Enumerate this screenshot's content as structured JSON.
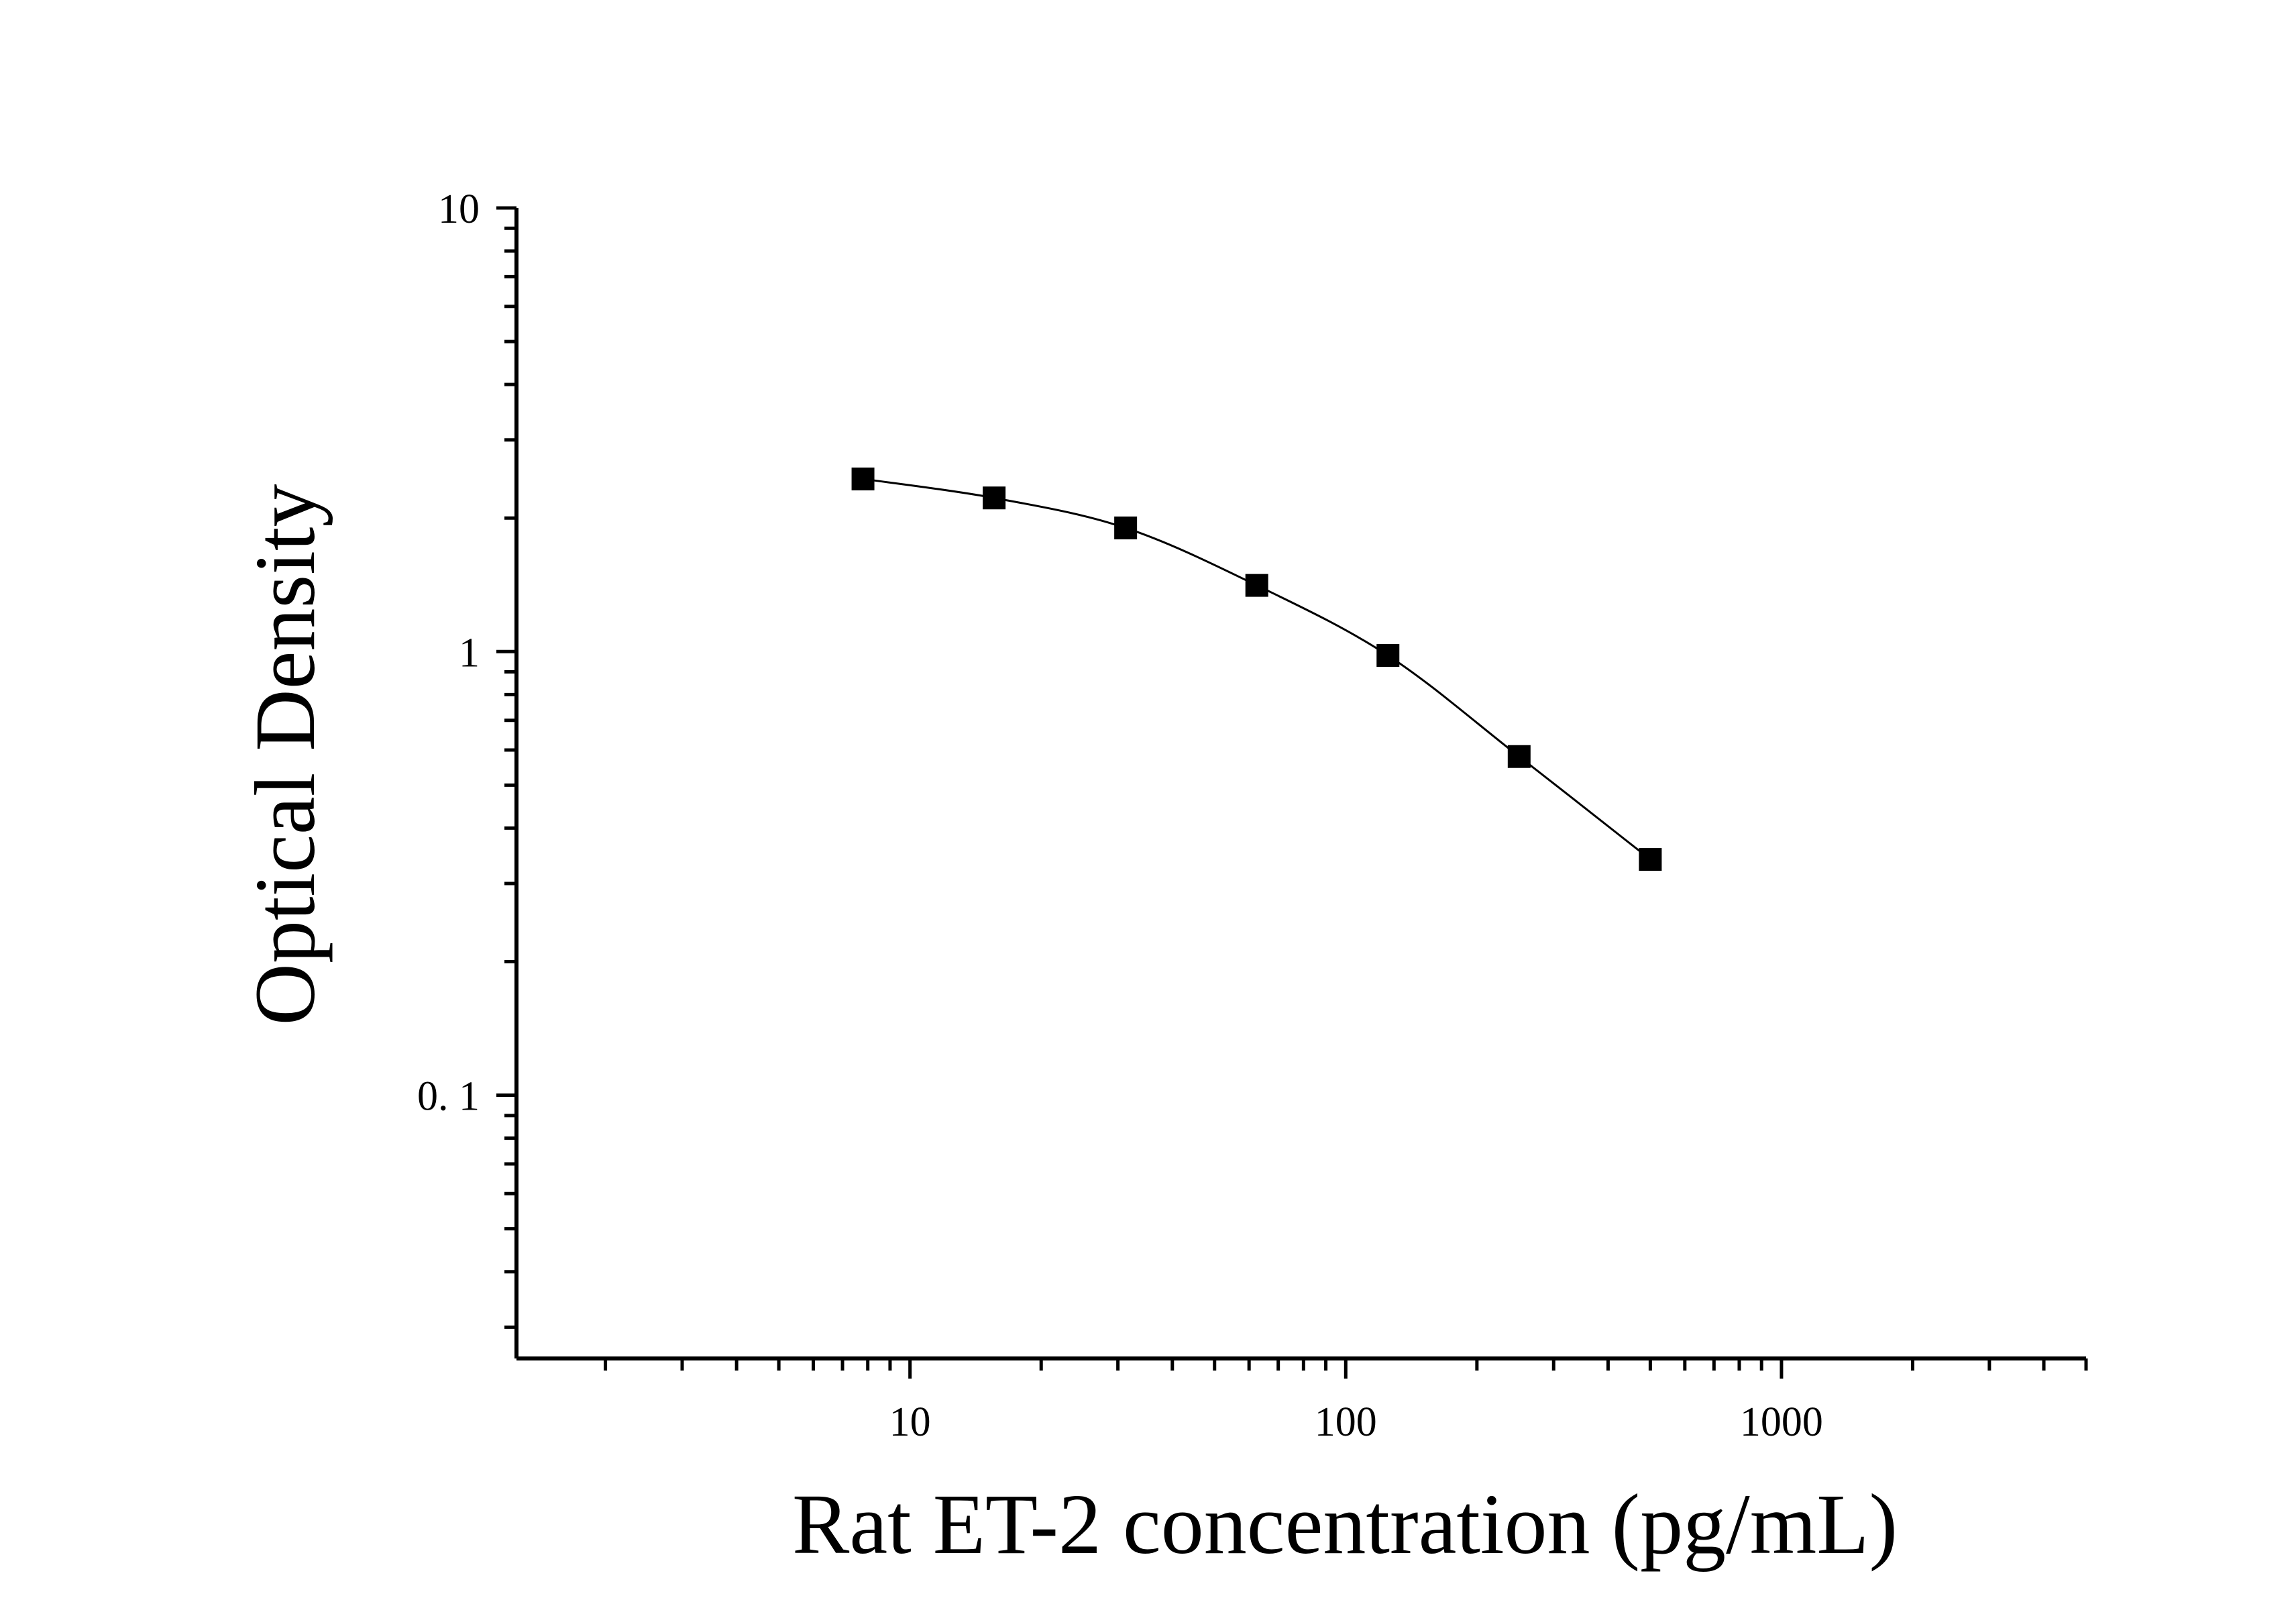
{
  "chart_data": {
    "type": "scatter",
    "xlabel": "Rat ET-2 concentration (pg/mL)",
    "ylabel": "Optical Density",
    "x_scale": "log",
    "y_scale": "log",
    "xlim": [
      1.25,
      5000
    ],
    "ylim": [
      0.0255,
      10
    ],
    "x_ticks": [
      {
        "value": 10,
        "label": "10"
      },
      {
        "value": 100,
        "label": "100"
      },
      {
        "value": 1000,
        "label": "1000"
      }
    ],
    "y_ticks": [
      {
        "value": 0.1,
        "label": "0. 1"
      },
      {
        "value": 1,
        "label": "1"
      },
      {
        "value": 10,
        "label": "10"
      }
    ],
    "grid": false,
    "legend": false,
    "series": [
      {
        "x": [
          7.8,
          15.6,
          31.25,
          62.5,
          125,
          250,
          500
        ],
        "y": [
          2.45,
          2.22,
          1.9,
          1.41,
          0.98,
          0.58,
          0.34
        ],
        "marker": "square",
        "fit_line": true,
        "color": "#000000"
      }
    ]
  }
}
